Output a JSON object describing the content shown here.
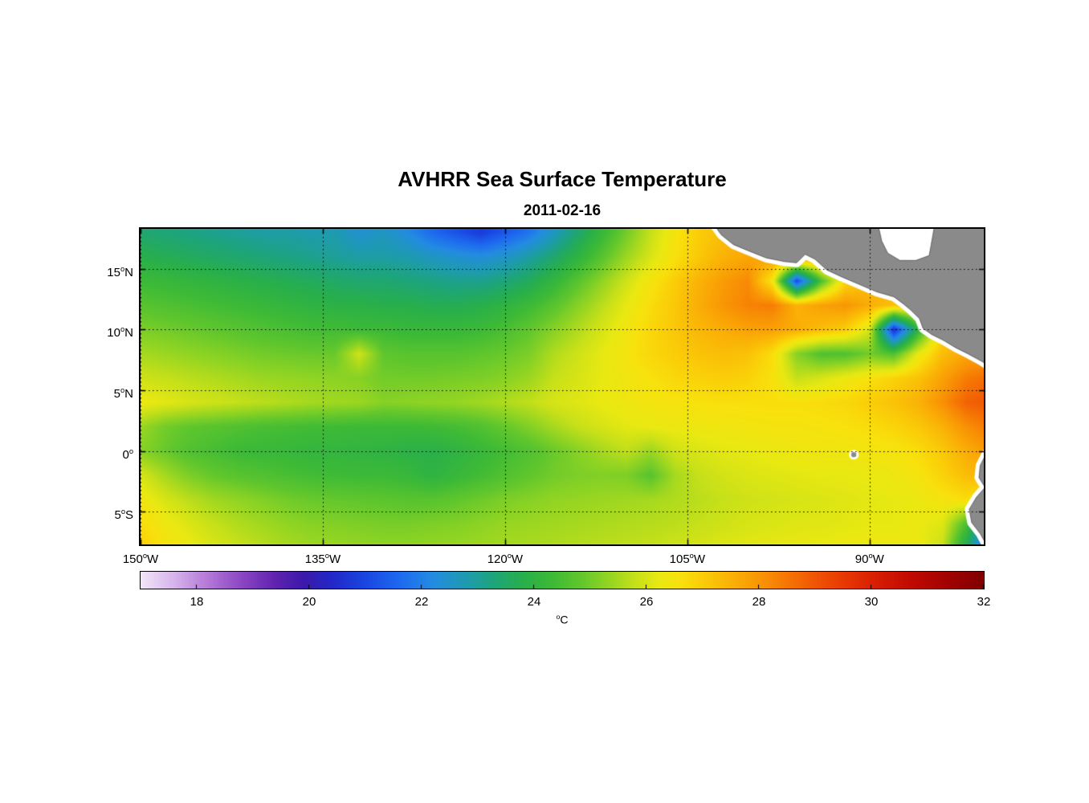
{
  "title": "AVHRR Sea Surface Temperature",
  "subtitle": "2011-02-16",
  "axes": {
    "deg_superscript": "o",
    "x_ticks": [
      {
        "text": "150",
        "suffix": "W",
        "lon": -150
      },
      {
        "text": "135",
        "suffix": "W",
        "lon": -135
      },
      {
        "text": "120",
        "suffix": "W",
        "lon": -120
      },
      {
        "text": "105",
        "suffix": "W",
        "lon": -105
      },
      {
        "text": "90",
        "suffix": "W",
        "lon": -90
      }
    ],
    "y_ticks": [
      {
        "text": "15",
        "suffix": "N",
        "lat": 15
      },
      {
        "text": "10",
        "suffix": "N",
        "lat": 10
      },
      {
        "text": "5",
        "suffix": "N",
        "lat": 5
      },
      {
        "text": "0",
        "suffix": "",
        "lat": 0
      },
      {
        "text": "5",
        "suffix": "S",
        "lat": -5
      }
    ]
  },
  "colorbar": {
    "unit": "°C",
    "unit_letter": "C",
    "ticks": [
      18,
      20,
      22,
      24,
      26,
      28,
      30,
      32
    ],
    "range": [
      17,
      32
    ]
  },
  "chart_data": {
    "type": "heatmap",
    "title": "AVHRR Sea Surface Temperature",
    "date": "2011-02-16",
    "units": "°C",
    "x_tick_labels": [
      "150°W",
      "135°W",
      "120°W",
      "105°W",
      "90°W"
    ],
    "y_tick_labels": [
      "15°N",
      "10°N",
      "5°N",
      "0°",
      "5°S"
    ],
    "colorbar_tick_labels": [
      18,
      20,
      22,
      24,
      26,
      28,
      30,
      32
    ],
    "lon_range": [
      -150,
      -80.6
    ],
    "lat_range": [
      -7.7,
      18.3
    ],
    "grid_lon": [
      -150,
      -148,
      -146,
      -144,
      -142,
      -140,
      -138,
      -136,
      -134,
      -132,
      -130,
      -128,
      -126,
      -124,
      -122,
      -120,
      -118,
      -116,
      -114,
      -112,
      -110,
      -108,
      -106,
      -104,
      -102,
      -100,
      -98,
      -96,
      -94,
      -92,
      -90,
      -88,
      -86,
      -84,
      -82,
      -80
    ],
    "grid_lat": [
      18,
      16,
      14,
      12,
      10,
      8,
      6,
      4,
      2,
      0,
      -2,
      -4,
      -6,
      -8
    ],
    "sst_c": [
      [
        23.4,
        23.3,
        23.2,
        23.1,
        23.0,
        22.9,
        22.9,
        22.8,
        22.8,
        22.4,
        22.6,
        22.2,
        21.6,
        21.2,
        20.8,
        21.3,
        21.8,
        22.6,
        23.4,
        24.2,
        25.0,
        25.8,
        26.5,
        27.0,
        27.3,
        27.5,
        27.6,
        27.6,
        27.5,
        27.4,
        27.3,
        27.2,
        27.1,
        27.0,
        27.0,
        27.0
      ],
      [
        23.8,
        23.7,
        23.6,
        23.5,
        23.4,
        23.3,
        23.2,
        23.1,
        23.0,
        22.9,
        22.9,
        22.8,
        22.6,
        22.4,
        22.3,
        22.5,
        22.9,
        23.4,
        24.0,
        24.7,
        25.4,
        26.0,
        26.6,
        27.1,
        27.5,
        27.7,
        27.9,
        28.0,
        27.9,
        27.7,
        27.5,
        27.4,
        27.3,
        27.2,
        27.1,
        27.0
      ],
      [
        24.3,
        24.2,
        24.1,
        24.0,
        23.9,
        23.8,
        23.7,
        23.6,
        23.5,
        23.4,
        23.4,
        23.3,
        23.2,
        23.1,
        23.1,
        23.3,
        23.6,
        24.1,
        24.7,
        25.3,
        25.9,
        26.5,
        27.0,
        27.5,
        27.9,
        28.2,
        26.5,
        21.0,
        24.5,
        26.8,
        27.3,
        27.4,
        27.4,
        27.3,
        27.2,
        27.1
      ],
      [
        24.7,
        24.6,
        24.5,
        24.4,
        24.3,
        24.2,
        24.1,
        24.0,
        23.9,
        23.9,
        23.8,
        23.8,
        23.7,
        23.7,
        23.8,
        24.0,
        24.3,
        24.7,
        25.2,
        25.7,
        26.2,
        26.7,
        27.1,
        27.6,
        28.0,
        28.3,
        28.4,
        27.5,
        27.8,
        28.0,
        27.6,
        27.2,
        27.0,
        27.0,
        27.0,
        27.0
      ],
      [
        25.1,
        25.0,
        24.9,
        24.8,
        24.7,
        24.6,
        24.5,
        24.4,
        24.4,
        24.3,
        24.3,
        24.2,
        24.2,
        24.2,
        24.3,
        24.5,
        24.8,
        25.2,
        25.6,
        26.0,
        26.4,
        26.8,
        27.1,
        27.4,
        27.6,
        27.8,
        27.8,
        27.6,
        27.3,
        27.0,
        26.0,
        20.5,
        24.0,
        26.8,
        27.4,
        27.6
      ],
      [
        25.5,
        25.4,
        25.3,
        25.2,
        25.1,
        25.0,
        24.95,
        24.9,
        24.9,
        25.9,
        24.8,
        24.7,
        24.7,
        24.7,
        24.8,
        24.9,
        25.1,
        25.6,
        25.9,
        26.2,
        26.5,
        26.8,
        27.0,
        27.2,
        27.3,
        27.2,
        26.7,
        25.2,
        24.6,
        24.6,
        25.0,
        24.6,
        26.2,
        27.3,
        27.7,
        27.8
      ],
      [
        25.9,
        25.8,
        25.7,
        25.6,
        25.5,
        25.4,
        25.35,
        25.3,
        25.25,
        25.2,
        25.0,
        25.0,
        25.0,
        25.05,
        25.1,
        25.2,
        25.4,
        25.8,
        26.0,
        26.2,
        26.4,
        26.6,
        26.8,
        26.9,
        27.0,
        26.9,
        26.6,
        25.8,
        26.0,
        26.3,
        26.6,
        26.9,
        27.2,
        27.8,
        28.4,
        28.7
      ],
      [
        26.3,
        26.15,
        26.0,
        25.9,
        25.8,
        25.7,
        25.6,
        25.5,
        25.45,
        25.4,
        25.2,
        25.25,
        25.3,
        25.35,
        25.45,
        25.6,
        25.75,
        26.0,
        26.1,
        26.25,
        26.35,
        26.45,
        26.55,
        26.6,
        26.65,
        26.65,
        26.65,
        26.65,
        26.7,
        26.8,
        27.0,
        27.2,
        27.5,
        28.1,
        28.8,
        29.0
      ],
      [
        25.4,
        25.0,
        24.8,
        24.7,
        24.6,
        24.5,
        24.45,
        24.4,
        24.35,
        24.3,
        24.3,
        24.3,
        24.35,
        24.45,
        24.6,
        24.85,
        25.15,
        25.5,
        25.8,
        26.0,
        26.15,
        26.25,
        26.3,
        26.35,
        26.4,
        26.45,
        26.5,
        26.5,
        26.55,
        26.6,
        26.7,
        26.85,
        27.1,
        27.5,
        28.1,
        28.5
      ],
      [
        25.2,
        24.9,
        24.6,
        24.45,
        24.3,
        24.25,
        24.2,
        24.1,
        24.1,
        24.05,
        24.0,
        23.9,
        23.85,
        24.0,
        24.2,
        24.4,
        24.6,
        24.9,
        25.2,
        25.5,
        25.75,
        25.4,
        25.9,
        26.05,
        26.15,
        26.2,
        26.3,
        26.35,
        26.4,
        26.4,
        26.45,
        26.5,
        26.7,
        27.1,
        27.6,
        28.0
      ],
      [
        26.0,
        25.5,
        25.1,
        24.85,
        24.7,
        24.6,
        24.5,
        24.4,
        24.35,
        24.3,
        24.3,
        24.2,
        24.0,
        24.2,
        24.4,
        24.6,
        24.8,
        25.0,
        25.1,
        25.15,
        25.1,
        24.7,
        25.5,
        25.8,
        25.95,
        26.05,
        26.1,
        26.15,
        26.2,
        26.2,
        26.25,
        26.35,
        26.5,
        26.9,
        27.3,
        27.5
      ],
      [
        26.4,
        26.0,
        25.7,
        25.45,
        25.3,
        25.15,
        25.0,
        24.9,
        24.85,
        24.8,
        24.75,
        24.7,
        24.7,
        24.8,
        24.95,
        25.1,
        25.2,
        25.3,
        25.35,
        25.4,
        25.45,
        25.5,
        25.6,
        25.7,
        25.8,
        25.9,
        25.95,
        26.0,
        26.05,
        26.1,
        26.15,
        26.2,
        26.3,
        26.5,
        26.7,
        26.3
      ],
      [
        26.7,
        26.35,
        26.05,
        25.8,
        25.6,
        25.45,
        25.3,
        25.2,
        25.15,
        25.1,
        25.05,
        25.05,
        25.1,
        25.15,
        25.25,
        25.35,
        25.4,
        25.45,
        25.5,
        25.55,
        25.6,
        25.65,
        25.7,
        25.8,
        25.9,
        26.0,
        26.05,
        26.1,
        26.1,
        26.15,
        26.2,
        26.2,
        26.25,
        26.1,
        24.5,
        22.0
      ],
      [
        27.0,
        26.6,
        26.3,
        26.05,
        25.85,
        25.7,
        25.55,
        25.45,
        25.4,
        25.35,
        25.3,
        25.3,
        25.35,
        25.4,
        25.45,
        25.5,
        25.55,
        25.6,
        25.65,
        25.7,
        25.75,
        25.8,
        25.9,
        26.0,
        26.1,
        26.15,
        26.2,
        26.2,
        26.25,
        26.3,
        26.3,
        26.3,
        26.3,
        25.8,
        23.5,
        20.5
      ]
    ],
    "colormap_range_c": [
      17,
      32
    ],
    "colormap_stops": [
      [
        17.0,
        [
          242,
          230,
          247
        ]
      ],
      [
        17.6,
        [
          214,
          180,
          235
        ]
      ],
      [
        18.2,
        [
          180,
          120,
          215
        ]
      ],
      [
        18.8,
        [
          140,
          70,
          195
        ]
      ],
      [
        19.4,
        [
          95,
          35,
          175
        ]
      ],
      [
        19.9,
        [
          60,
          25,
          170
        ]
      ],
      [
        20.4,
        [
          35,
          40,
          200
        ]
      ],
      [
        21.0,
        [
          25,
          70,
          225
        ]
      ],
      [
        21.6,
        [
          30,
          105,
          240
        ]
      ],
      [
        22.2,
        [
          35,
          140,
          225
        ]
      ],
      [
        22.8,
        [
          30,
          155,
          175
        ]
      ],
      [
        23.3,
        [
          30,
          165,
          120
        ]
      ],
      [
        23.8,
        [
          40,
          175,
          75
        ]
      ],
      [
        24.3,
        [
          60,
          185,
          55
        ]
      ],
      [
        24.8,
        [
          95,
          198,
          45
        ]
      ],
      [
        25.3,
        [
          145,
          212,
          35
        ]
      ],
      [
        25.8,
        [
          198,
          224,
          25
        ]
      ],
      [
        26.2,
        [
          232,
          232,
          18
        ]
      ],
      [
        26.6,
        [
          248,
          225,
          12
        ]
      ],
      [
        27.0,
        [
          250,
          205,
          8
        ]
      ],
      [
        27.5,
        [
          250,
          178,
          6
        ]
      ],
      [
        28.0,
        [
          249,
          150,
          5
        ]
      ],
      [
        28.5,
        [
          246,
          118,
          4
        ]
      ],
      [
        29.0,
        [
          240,
          85,
          4
        ]
      ],
      [
        29.6,
        [
          230,
          52,
          3
        ]
      ],
      [
        30.2,
        [
          212,
          25,
          2
        ]
      ],
      [
        30.8,
        [
          188,
          8,
          1
        ]
      ],
      [
        31.4,
        [
          160,
          2,
          0
        ]
      ],
      [
        32.0,
        [
          128,
          0,
          0
        ]
      ]
    ],
    "land_color": "#8A8A8A",
    "no_data_color": "#FFFFFF",
    "land_polygons": [
      {
        "name": "mexico-central-america",
        "points": [
          [
            -103.0,
            18.9
          ],
          [
            -102.2,
            17.8
          ],
          [
            -101.2,
            17.0
          ],
          [
            -100.0,
            16.5
          ],
          [
            -98.5,
            15.9
          ],
          [
            -97.0,
            15.6
          ],
          [
            -96.0,
            15.5
          ],
          [
            -95.3,
            16.2
          ],
          [
            -94.5,
            15.8
          ],
          [
            -93.5,
            14.9
          ],
          [
            -92.2,
            14.3
          ],
          [
            -90.8,
            13.7
          ],
          [
            -89.4,
            13.1
          ],
          [
            -88.0,
            12.7
          ],
          [
            -87.2,
            12.1
          ],
          [
            -86.6,
            11.6
          ],
          [
            -85.9,
            10.9
          ],
          [
            -85.6,
            10.1
          ],
          [
            -84.9,
            9.6
          ],
          [
            -83.9,
            9.1
          ],
          [
            -82.9,
            8.5
          ],
          [
            -81.9,
            8.0
          ],
          [
            -80.8,
            7.4
          ],
          [
            -80.0,
            6.9
          ],
          [
            -78.5,
            6.3
          ],
          [
            -77.5,
            6.8
          ],
          [
            -77.5,
            18.9
          ],
          [
            -84.6,
            18.9
          ],
          [
            -84.95,
            16.9
          ],
          [
            -85.1,
            16.1
          ],
          [
            -86.2,
            15.7
          ],
          [
            -87.5,
            15.7
          ],
          [
            -88.5,
            16.3
          ],
          [
            -89.0,
            17.3
          ],
          [
            -89.35,
            18.9
          ]
        ]
      },
      {
        "name": "south-america",
        "points": [
          [
            -77.5,
            1.2
          ],
          [
            -79.7,
            0.5
          ],
          [
            -80.4,
            -0.2
          ],
          [
            -80.9,
            -1.2
          ],
          [
            -81.0,
            -2.2
          ],
          [
            -80.5,
            -3.0
          ],
          [
            -81.2,
            -3.8
          ],
          [
            -81.8,
            -4.8
          ],
          [
            -81.6,
            -5.9
          ],
          [
            -80.9,
            -6.8
          ],
          [
            -80.3,
            -7.9
          ],
          [
            -79.9,
            -8.8
          ],
          [
            -77.5,
            -8.8
          ]
        ]
      }
    ],
    "no_data_polygons": [
      {
        "name": "gulf-of-honduras-gap",
        "points": [
          [
            -89.6,
            18.9
          ],
          [
            -89.15,
            17.3
          ],
          [
            -88.65,
            16.2
          ],
          [
            -87.5,
            15.5
          ],
          [
            -86.1,
            15.55
          ],
          [
            -85.1,
            16.2
          ],
          [
            -84.75,
            18.9
          ]
        ]
      }
    ],
    "islands": [
      {
        "name": "galapagos",
        "lon": -91.3,
        "lat": -0.3,
        "radius_deg": 0.25
      }
    ]
  }
}
